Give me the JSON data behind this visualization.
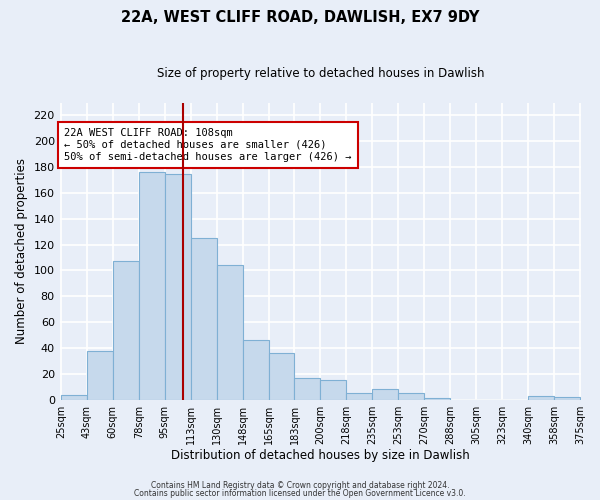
{
  "title": "22A, WEST CLIFF ROAD, DAWLISH, EX7 9DY",
  "subtitle": "Size of property relative to detached houses in Dawlish",
  "xlabel": "Distribution of detached houses by size in Dawlish",
  "ylabel": "Number of detached properties",
  "bar_color": "#c6d9ec",
  "bar_edgecolor": "#7fb0d4",
  "bar_heights": [
    4,
    38,
    107,
    176,
    175,
    125,
    104,
    46,
    36,
    17,
    15,
    5,
    8,
    5,
    1,
    0,
    0,
    0,
    3,
    2
  ],
  "xtick_labels": [
    "25sqm",
    "43sqm",
    "60sqm",
    "78sqm",
    "95sqm",
    "113sqm",
    "130sqm",
    "148sqm",
    "165sqm",
    "183sqm",
    "200sqm",
    "218sqm",
    "235sqm",
    "253sqm",
    "270sqm",
    "288sqm",
    "305sqm",
    "323sqm",
    "340sqm",
    "358sqm",
    "375sqm"
  ],
  "ylim": [
    0,
    230
  ],
  "yticks": [
    0,
    20,
    40,
    60,
    80,
    100,
    120,
    140,
    160,
    180,
    200,
    220
  ],
  "marker_color": "#aa0000",
  "annotation_text": "22A WEST CLIFF ROAD: 108sqm\n← 50% of detached houses are smaller (426)\n50% of semi-detached houses are larger (426) →",
  "footer_line1": "Contains HM Land Registry data © Crown copyright and database right 2024.",
  "footer_line2": "Contains public sector information licensed under the Open Government Licence v3.0.",
  "background_color": "#e8eef8",
  "plot_bg_color": "#e8eef8",
  "grid_color": "#ffffff",
  "title_fontsize": 10.5,
  "subtitle_fontsize": 8.5
}
